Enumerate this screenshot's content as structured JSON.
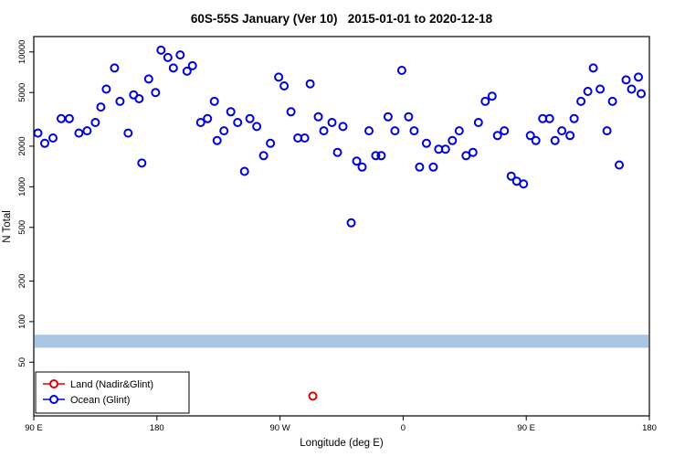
{
  "chart_data": {
    "type": "scatter",
    "title": "60S-55S January (Ver 10)   2015-01-01 to 2020-12-18",
    "xlabel": "Longitude (deg E)",
    "ylabel": "N Total",
    "x_axis": {
      "min": 90,
      "max": 540,
      "ticks": [
        90,
        180,
        270,
        360,
        450,
        540
      ],
      "tick_labels": [
        "90 E",
        "180",
        "90 W",
        "0",
        "90 E",
        "180"
      ]
    },
    "y_axis": {
      "scale": "log",
      "min": 20,
      "max": 13000,
      "ticks": [
        50,
        100,
        200,
        500,
        1000,
        2000,
        5000,
        10000
      ],
      "tick_labels": [
        "50",
        "100",
        "200",
        "500",
        "1000",
        "2000",
        "5000",
        "10000"
      ]
    },
    "band": {
      "y_min": 64,
      "y_max": 80,
      "color": "#a8c5e4"
    },
    "legend": {
      "position": "bottom-left"
    },
    "series": [
      {
        "name": "Land (Nadir&Glint)",
        "color": "#e00000",
        "points": [
          [
            294,
            28
          ]
        ]
      },
      {
        "name": "Ocean (Glint)",
        "color": "#0000dd",
        "points": [
          [
            93,
            2500
          ],
          [
            98,
            2100
          ],
          [
            104,
            2300
          ],
          [
            110,
            3200
          ],
          [
            116,
            3200
          ],
          [
            123,
            2500
          ],
          [
            129,
            2600
          ],
          [
            135,
            3000
          ],
          [
            139,
            3900
          ],
          [
            143,
            5300
          ],
          [
            149,
            7600
          ],
          [
            153,
            4300
          ],
          [
            159,
            2500
          ],
          [
            163,
            4800
          ],
          [
            167,
            4500
          ],
          [
            169,
            1500
          ],
          [
            174,
            6300
          ],
          [
            179,
            5000
          ],
          [
            183,
            10300
          ],
          [
            188,
            9100
          ],
          [
            192,
            7600
          ],
          [
            197,
            9500
          ],
          [
            202,
            7200
          ],
          [
            206,
            7900
          ],
          [
            212,
            3000
          ],
          [
            217,
            3200
          ],
          [
            222,
            4300
          ],
          [
            224,
            2200
          ],
          [
            229,
            2600
          ],
          [
            234,
            3600
          ],
          [
            239,
            3000
          ],
          [
            244,
            1300
          ],
          [
            248,
            3200
          ],
          [
            253,
            2800
          ],
          [
            258,
            1700
          ],
          [
            263,
            2100
          ],
          [
            269,
            6500
          ],
          [
            273,
            5600
          ],
          [
            278,
            3600
          ],
          [
            283,
            2300
          ],
          [
            288,
            2300
          ],
          [
            292,
            5800
          ],
          [
            298,
            3300
          ],
          [
            302,
            2600
          ],
          [
            308,
            3000
          ],
          [
            312,
            1800
          ],
          [
            316,
            2800
          ],
          [
            322,
            540
          ],
          [
            326,
            1550
          ],
          [
            330,
            1400
          ],
          [
            335,
            2600
          ],
          [
            340,
            1700
          ],
          [
            344,
            1700
          ],
          [
            349,
            3300
          ],
          [
            354,
            2600
          ],
          [
            359,
            7300
          ],
          [
            364,
            3300
          ],
          [
            368,
            2600
          ],
          [
            372,
            1400
          ],
          [
            377,
            2100
          ],
          [
            382,
            1400
          ],
          [
            386,
            1900
          ],
          [
            391,
            1900
          ],
          [
            396,
            2200
          ],
          [
            401,
            2600
          ],
          [
            406,
            1700
          ],
          [
            411,
            1800
          ],
          [
            415,
            3000
          ],
          [
            420,
            4300
          ],
          [
            425,
            4700
          ],
          [
            429,
            2400
          ],
          [
            434,
            2600
          ],
          [
            439,
            1200
          ],
          [
            443,
            1100
          ],
          [
            448,
            1050
          ],
          [
            453,
            2400
          ],
          [
            457,
            2200
          ],
          [
            462,
            3200
          ],
          [
            467,
            3200
          ],
          [
            471,
            2200
          ],
          [
            476,
            2600
          ],
          [
            482,
            2400
          ],
          [
            485,
            3200
          ],
          [
            490,
            4300
          ],
          [
            495,
            5100
          ],
          [
            499,
            7600
          ],
          [
            504,
            5300
          ],
          [
            509,
            2600
          ],
          [
            513,
            4300
          ],
          [
            518,
            1450
          ],
          [
            523,
            6200
          ],
          [
            527,
            5300
          ],
          [
            532,
            6500
          ],
          [
            534,
            4900
          ]
        ]
      }
    ]
  }
}
